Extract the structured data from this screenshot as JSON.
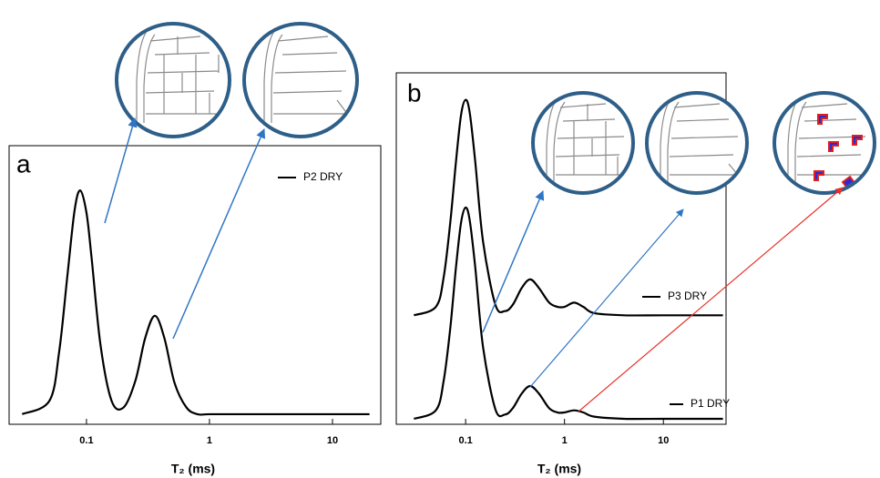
{
  "chart_data": [
    {
      "type": "line",
      "label": "a",
      "x_label": "T₂ (ms)",
      "log_x": true,
      "x": [
        0.03,
        0.05,
        0.06,
        0.07,
        0.08,
        0.089,
        0.1,
        0.11,
        0.13,
        0.16,
        0.2,
        0.25,
        0.3,
        0.36,
        0.43,
        0.52,
        0.65,
        0.8,
        1,
        2,
        5,
        10,
        20
      ],
      "series": [
        {
          "name": "P2 DRY",
          "color": "#000000",
          "values": [
            0,
            0.06,
            0.28,
            0.62,
            0.91,
            1,
            0.9,
            0.7,
            0.31,
            0.06,
            0.03,
            0.15,
            0.34,
            0.44,
            0.34,
            0.14,
            0.03,
            0,
            0,
            0,
            0,
            0,
            0
          ]
        }
      ],
      "xlim": [
        0.0235,
        24.7
      ],
      "ylim": [
        -0.045,
        1.2
      ],
      "xticks": [
        0.1,
        1,
        10
      ]
    },
    {
      "type": "line",
      "label": "b",
      "x_label": "T₂ (ms)",
      "log_x": true,
      "x": [
        0.03,
        0.05,
        0.06,
        0.07,
        0.08,
        0.09,
        0.1,
        0.11,
        0.125,
        0.15,
        0.2,
        0.25,
        0.3,
        0.37,
        0.45,
        0.55,
        0.7,
        0.85,
        1,
        1.25,
        1.55,
        2,
        4,
        10,
        40
      ],
      "series": [
        {
          "name": "P3 DRY",
          "color": "#000000",
          "values": [
            0.49,
            0.53,
            0.67,
            0.93,
            1.22,
            1.44,
            1.51,
            1.45,
            1.22,
            0.84,
            0.54,
            0.51,
            0.54,
            0.62,
            0.66,
            0.62,
            0.55,
            0.53,
            0.53,
            0.55,
            0.53,
            0.5,
            0.49,
            0.49,
            0.49
          ]
        },
        {
          "name": "P1 DRY",
          "color": "#000000",
          "values": [
            0,
            0.04,
            0.18,
            0.43,
            0.72,
            0.93,
            1,
            0.94,
            0.72,
            0.34,
            0.045,
            0.02,
            0.05,
            0.12,
            0.155,
            0.12,
            0.05,
            0.03,
            0.03,
            0.04,
            0.03,
            0.01,
            0,
            0,
            0
          ]
        }
      ],
      "xlim": [
        0.0199,
        43
      ],
      "ylim": [
        -0.026,
        1.638
      ],
      "xticks": [
        0.1,
        1,
        10
      ]
    }
  ]
}
